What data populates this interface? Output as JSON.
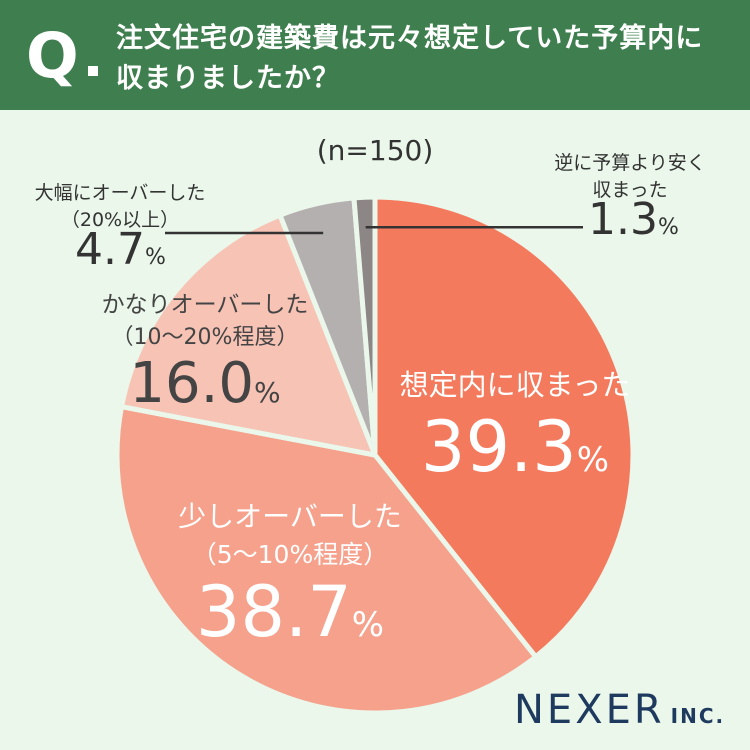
{
  "question": {
    "mark": "Q",
    "line1": "注文住宅の建築費は元々想定していた予算内に",
    "line2": "収まりましたか？"
  },
  "sample": "(n=150)",
  "logo": {
    "main": "NEXER",
    "sub": "INC."
  },
  "colors": {
    "header": "#3f7f4f",
    "background": "#eaf7ea"
  },
  "chart_data": {
    "type": "pie",
    "start": "12 o'clock, clockwise",
    "slices": [
      {
        "label": "想定内に収まった",
        "sub": "",
        "value": 39.3,
        "display": "39.3",
        "color": "#f47a5e"
      },
      {
        "label": "少しオーバーした",
        "sub": "（5〜10%程度）",
        "value": 38.7,
        "display": "38.7",
        "color": "#f5a18c"
      },
      {
        "label": "かなりオーバーした",
        "sub": "（10〜20%程度）",
        "value": 16.0,
        "display": "16.0",
        "color": "#f6c3b5"
      },
      {
        "label": "大幅にオーバーした",
        "sub": "（20%以上）",
        "value": 4.7,
        "display": "4.7",
        "color": "#b5b0b0"
      },
      {
        "label": "逆に予算より安く",
        "sub": "収まった",
        "value": 1.3,
        "display": "1.3",
        "color": "#8c8686"
      }
    ],
    "unit": "%"
  }
}
